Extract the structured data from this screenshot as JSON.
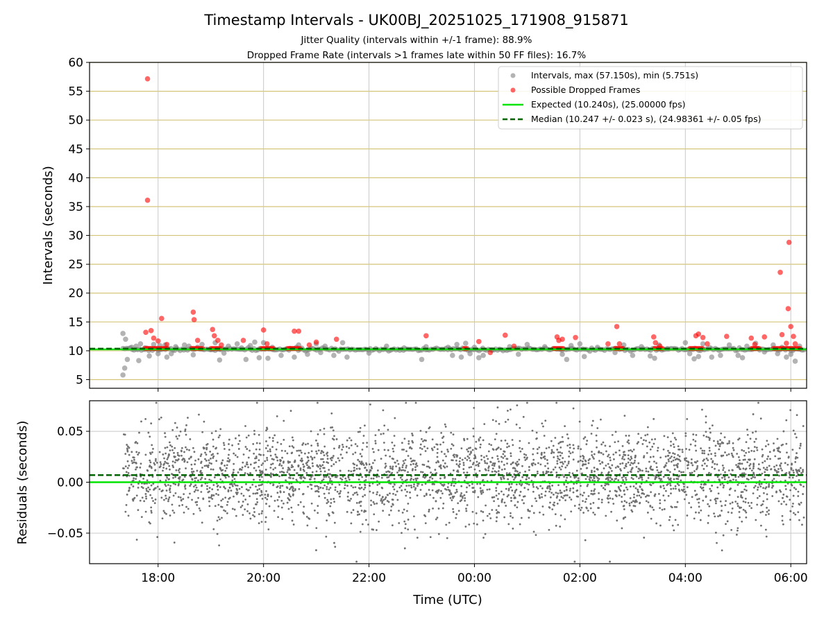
{
  "figure": {
    "title": "Timestamp Intervals - UK00BJ_20251025_171908_915871",
    "subtitle_1": "Jitter Quality (intervals within +/-1 frame): 88.9%",
    "subtitle_2": "Dropped Frame Rate (intervals >1 frames late within 50 FF files): 16.7%"
  },
  "colors": {
    "intervals": "#808080",
    "dropped": "#ff0000",
    "expected": "#00e400",
    "median": "#006400",
    "hgrid_top": "#d4c47a",
    "grid": "#c8c8c8"
  },
  "chart_data": [
    {
      "type": "scatter",
      "ylabel": "Intervals (seconds)",
      "ylim": [
        3.5,
        60
      ],
      "yticks": [
        "5",
        "10",
        "15",
        "20",
        "25",
        "30",
        "35",
        "40",
        "45",
        "50",
        "55",
        "60"
      ],
      "xlim_hours": [
        16.7,
        30.3
      ],
      "x_is_time": true,
      "grid": "horizontal gold lines + vertical gray lines",
      "legend_position": "upper right",
      "legend": [
        {
          "key": "intervals",
          "label": "Intervals, max (57.150s), min (5.751s)"
        },
        {
          "key": "dropped",
          "label": "Possible Dropped Frames"
        },
        {
          "key": "expected",
          "label": "Expected (10.240s), (25.00000 fps)"
        },
        {
          "key": "median",
          "label": "Median (10.247 +/- 0.023 s), (24.98361 +/- 0.05 fps)"
        }
      ],
      "expected_value": 10.24,
      "median_value": 10.247,
      "intervals_points": [
        [
          "17:20",
          5.8
        ],
        [
          "17:22",
          7.0
        ],
        [
          "17:25",
          8.5
        ],
        [
          "17:20",
          13.0
        ],
        [
          "17:23",
          12.0
        ],
        [
          "17:30",
          10.6
        ],
        [
          "17:35",
          10.8
        ],
        [
          "17:38",
          8.3
        ],
        [
          "17:40",
          11.2
        ],
        [
          "17:45",
          10.5
        ],
        [
          "17:50",
          9.1
        ],
        [
          "17:55",
          11.1
        ],
        [
          "18:00",
          9.5
        ],
        [
          "18:02",
          10.9
        ],
        [
          "18:08",
          11.0
        ],
        [
          "18:10",
          8.9
        ],
        [
          "18:15",
          9.5
        ],
        [
          "18:20",
          10.7
        ],
        [
          "18:30",
          11.0
        ],
        [
          "18:35",
          10.8
        ],
        [
          "18:40",
          9.3
        ],
        [
          "18:45",
          10.6
        ],
        [
          "18:50",
          11.1
        ],
        [
          "19:00",
          10.2
        ],
        [
          "19:05",
          11.4
        ],
        [
          "19:10",
          8.4
        ],
        [
          "19:15",
          9.6
        ],
        [
          "19:20",
          10.8
        ],
        [
          "19:30",
          11.2
        ],
        [
          "19:35",
          10.5
        ],
        [
          "19:40",
          8.5
        ],
        [
          "19:45",
          10.9
        ],
        [
          "19:50",
          11.5
        ],
        [
          "19:55",
          8.8
        ],
        [
          "20:00",
          11.4
        ],
        [
          "20:05",
          8.7
        ],
        [
          "20:10",
          10.6
        ],
        [
          "20:20",
          9.2
        ],
        [
          "20:30",
          10.4
        ],
        [
          "20:35",
          8.9
        ],
        [
          "20:40",
          11.0
        ],
        [
          "20:50",
          9.4
        ],
        [
          "21:00",
          11.2
        ],
        [
          "21:05",
          9.7
        ],
        [
          "21:10",
          10.8
        ],
        [
          "21:20",
          9.2
        ],
        [
          "21:30",
          11.4
        ],
        [
          "21:35",
          8.9
        ],
        [
          "22:00",
          9.6
        ],
        [
          "22:20",
          10.8
        ],
        [
          "22:40",
          10.5
        ],
        [
          "23:00",
          8.5
        ],
        [
          "23:05",
          10.7
        ],
        [
          "23:30",
          10.6
        ],
        [
          "23:35",
          9.2
        ],
        [
          "23:40",
          11.1
        ],
        [
          "23:45",
          8.9
        ],
        [
          "23:50",
          11.3
        ],
        [
          "23:55",
          9.5
        ],
        [
          "00:00",
          10.6
        ],
        [
          "00:05",
          8.8
        ],
        [
          "00:10",
          9.2
        ],
        [
          "00:20",
          10.2
        ],
        [
          "00:40",
          10.7
        ],
        [
          "00:50",
          9.4
        ],
        [
          "01:00",
          11.1
        ],
        [
          "01:20",
          10.7
        ],
        [
          "01:40",
          9.4
        ],
        [
          "01:45",
          8.5
        ],
        [
          "01:50",
          10.9
        ],
        [
          "02:00",
          11.2
        ],
        [
          "02:05",
          9.0
        ],
        [
          "02:20",
          10.6
        ],
        [
          "02:40",
          9.7
        ],
        [
          "02:50",
          11.0
        ],
        [
          "03:00",
          9.2
        ],
        [
          "03:10",
          10.7
        ],
        [
          "03:20",
          9.1
        ],
        [
          "03:25",
          8.7
        ],
        [
          "03:30",
          11.0
        ],
        [
          "03:40",
          10.3
        ],
        [
          "04:00",
          11.4
        ],
        [
          "04:05",
          9.5
        ],
        [
          "04:10",
          8.6
        ],
        [
          "04:15",
          9.0
        ],
        [
          "04:20",
          11.2
        ],
        [
          "04:30",
          8.9
        ],
        [
          "04:40",
          9.2
        ],
        [
          "04:50",
          11.0
        ],
        [
          "05:00",
          9.2
        ],
        [
          "05:05",
          8.8
        ],
        [
          "05:10",
          10.8
        ],
        [
          "05:20",
          11.3
        ],
        [
          "05:30",
          9.8
        ],
        [
          "05:40",
          11.0
        ],
        [
          "05:45",
          9.5
        ],
        [
          "05:50",
          10.6
        ],
        [
          "05:55",
          8.9
        ],
        [
          "06:00",
          9.4
        ],
        [
          "06:05",
          8.2
        ],
        [
          "06:10",
          10.8
        ]
      ],
      "dropped_points": [
        [
          "17:48",
          57.15
        ],
        [
          "17:48",
          36.1
        ],
        [
          "17:46",
          13.2
        ],
        [
          "17:52",
          13.5
        ],
        [
          "17:55",
          12.2
        ],
        [
          "18:04",
          15.6
        ],
        [
          "18:00",
          11.7
        ],
        [
          "18:10",
          11.1
        ],
        [
          "18:40",
          16.7
        ],
        [
          "18:41",
          15.4
        ],
        [
          "18:45",
          11.8
        ],
        [
          "19:02",
          13.7
        ],
        [
          "19:04",
          12.6
        ],
        [
          "19:08",
          11.8
        ],
        [
          "19:12",
          11.0
        ],
        [
          "19:37",
          11.8
        ],
        [
          "20:00",
          13.6
        ],
        [
          "20:04",
          11.2
        ],
        [
          "20:35",
          13.4
        ],
        [
          "20:40",
          13.4
        ],
        [
          "20:52",
          11.0
        ],
        [
          "21:00",
          11.5
        ],
        [
          "21:23",
          12.0
        ],
        [
          "23:05",
          12.6
        ],
        [
          "00:05",
          11.6
        ],
        [
          "00:18",
          9.7
        ],
        [
          "00:35",
          12.7
        ],
        [
          "00:45",
          10.8
        ],
        [
          "01:34",
          12.4
        ],
        [
          "01:36",
          11.8
        ],
        [
          "01:40",
          12.0
        ],
        [
          "01:55",
          12.3
        ],
        [
          "02:32",
          11.2
        ],
        [
          "02:42",
          14.2
        ],
        [
          "02:45",
          11.2
        ],
        [
          "03:24",
          12.4
        ],
        [
          "03:26",
          11.4
        ],
        [
          "03:31",
          10.8
        ],
        [
          "04:12",
          12.6
        ],
        [
          "04:15",
          12.9
        ],
        [
          "04:20",
          12.3
        ],
        [
          "04:25",
          11.2
        ],
        [
          "04:47",
          12.5
        ],
        [
          "05:15",
          12.2
        ],
        [
          "05:19",
          11.1
        ],
        [
          "05:30",
          12.4
        ],
        [
          "05:48",
          23.6
        ],
        [
          "05:50",
          12.8
        ],
        [
          "05:55",
          11.3
        ],
        [
          "05:58",
          28.8
        ],
        [
          "05:57",
          17.3
        ],
        [
          "06:00",
          14.2
        ],
        [
          "06:03",
          12.5
        ],
        [
          "06:05",
          11.2
        ]
      ],
      "dropped_runs": [
        [
          "17:45",
          "18:12"
        ],
        [
          "18:38",
          "18:52"
        ],
        [
          "19:00",
          "19:12"
        ],
        [
          "19:57",
          "20:12"
        ],
        [
          "20:27",
          "20:42"
        ],
        [
          "23:48",
          "23:52"
        ],
        [
          "01:30",
          "01:42"
        ],
        [
          "02:40",
          "02:50"
        ],
        [
          "03:25",
          "03:35"
        ],
        [
          "04:05",
          "04:20"
        ],
        [
          "05:15",
          "05:25"
        ],
        [
          "05:40",
          "06:12"
        ]
      ]
    },
    {
      "type": "scatter",
      "ylabel": "Residuals (seconds)",
      "xlabel": "Time (UTC)",
      "ylim": [
        -0.08,
        0.08
      ],
      "yticks": [
        "−0.05",
        "0.00",
        "0.05"
      ],
      "ytick_values": [
        -0.05,
        0.0,
        0.05
      ],
      "xticks": [
        "18:00",
        "20:00",
        "22:00",
        "00:00",
        "02:00",
        "04:00",
        "06:00"
      ],
      "xtick_hours": [
        18,
        20,
        22,
        24,
        26,
        28,
        30
      ],
      "xlim_hours": [
        16.7,
        30.3
      ],
      "expected_residual": 0.0,
      "median_residual": 0.007,
      "residuals_summary": {
        "center": 0.007,
        "spread": 0.023,
        "start": "17:20",
        "end": "06:15",
        "count": 3200,
        "max": 0.078,
        "min": -0.078
      }
    }
  ]
}
